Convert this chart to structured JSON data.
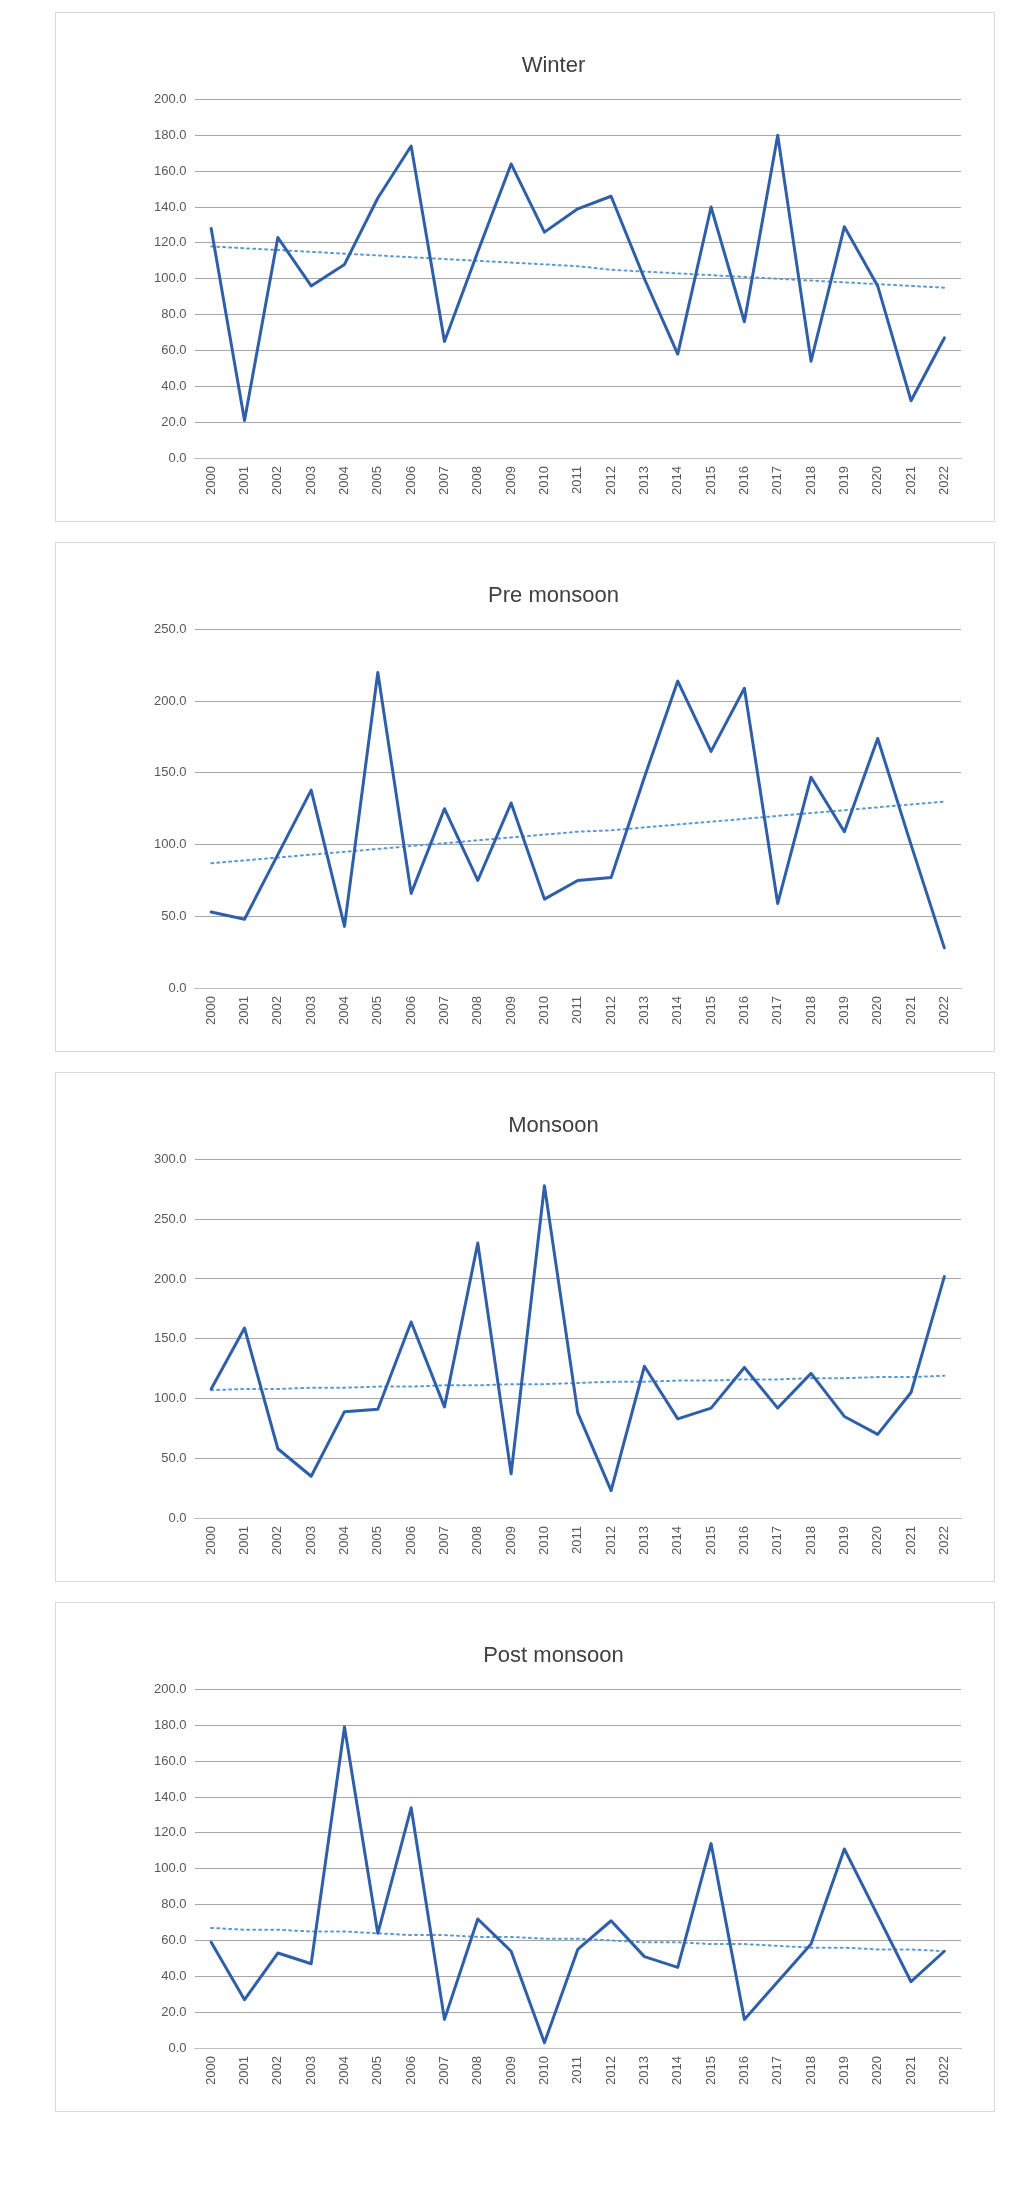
{
  "chart_data": [
    {
      "type": "line",
      "title": "Winter",
      "categories": [
        "2000",
        "2001",
        "2002",
        "2003",
        "2004",
        "2005",
        "2006",
        "2007",
        "2008",
        "2009",
        "2010",
        "2011",
        "2012",
        "2013",
        "2014",
        "2015",
        "2016",
        "2017",
        "2018",
        "2019",
        "2020",
        "2021",
        "2022"
      ],
      "series": [
        {
          "color": "#2e5fa8",
          "line_style": "solid",
          "values": [
            128,
            21,
            123,
            96,
            108,
            145,
            174,
            65,
            115,
            164,
            126,
            139,
            146,
            100,
            58,
            140,
            76,
            180,
            54,
            129,
            96,
            32,
            67
          ]
        },
        {
          "type": "line",
          "color": "#5b9bd5",
          "line_style": "dotted",
          "values": [
            118,
            117,
            116,
            115,
            114,
            113,
            112,
            111,
            110,
            109,
            108,
            107,
            105,
            104,
            103,
            102,
            101,
            100,
            99,
            98,
            97,
            96,
            95
          ]
        }
      ],
      "ylim": [
        0,
        200
      ],
      "yticks": [
        {
          "value": 0,
          "label": "0.0"
        },
        {
          "value": 20,
          "label": "20.0"
        },
        {
          "value": 40,
          "label": "40.0"
        },
        {
          "value": 60,
          "label": "60.0"
        },
        {
          "value": 80,
          "label": "80.0"
        },
        {
          "value": 100,
          "label": "100.0"
        },
        {
          "value": 120,
          "label": "120.0"
        },
        {
          "value": 140,
          "label": "140.0"
        },
        {
          "value": 160,
          "label": "160.0"
        },
        {
          "value": 180,
          "label": "180.0"
        },
        {
          "value": 200,
          "label": "200.0"
        }
      ],
      "grid": "y",
      "legend": false,
      "marker": "none"
    },
    {
      "type": "line",
      "title": "Pre monsoon",
      "categories": [
        "2000",
        "2001",
        "2002",
        "2003",
        "2004",
        "2005",
        "2006",
        "2007",
        "2008",
        "2009",
        "2010",
        "2011",
        "2012",
        "2013",
        "2014",
        "2015",
        "2016",
        "2017",
        "2018",
        "2019",
        "2020",
        "2021",
        "2022"
      ],
      "series": [
        {
          "color": "#2e5fa8",
          "line_style": "solid",
          "values": [
            53,
            48,
            93,
            138,
            43,
            220,
            66,
            125,
            75,
            129,
            62,
            75,
            77,
            147,
            214,
            165,
            209,
            59,
            147,
            109,
            174,
            100,
            28
          ]
        },
        {
          "type": "line",
          "color": "#5b9bd5",
          "line_style": "dotted",
          "values": [
            87,
            89,
            91,
            93,
            95,
            97,
            99,
            101,
            103,
            105,
            107,
            109,
            110,
            112,
            114,
            116,
            118,
            120,
            122,
            124,
            126,
            128,
            130
          ]
        }
      ],
      "ylim": [
        0,
        250
      ],
      "yticks": [
        {
          "value": 0,
          "label": "0.0"
        },
        {
          "value": 50,
          "label": "50.0"
        },
        {
          "value": 100,
          "label": "100.0"
        },
        {
          "value": 150,
          "label": "150.0"
        },
        {
          "value": 200,
          "label": "200.0"
        },
        {
          "value": 250,
          "label": "250.0"
        }
      ],
      "grid": "y",
      "legend": false,
      "marker": "none"
    },
    {
      "type": "line",
      "title": "Monsoon",
      "categories": [
        "2000",
        "2001",
        "2002",
        "2003",
        "2004",
        "2005",
        "2006",
        "2007",
        "2008",
        "2009",
        "2010",
        "2011",
        "2012",
        "2013",
        "2014",
        "2015",
        "2016",
        "2017",
        "2018",
        "2019",
        "2020",
        "2021",
        "2022"
      ],
      "series": [
        {
          "color": "#2e5fa8",
          "line_style": "solid",
          "values": [
            108,
            159,
            58,
            35,
            89,
            91,
            164,
            93,
            230,
            37,
            278,
            88,
            23,
            127,
            83,
            92,
            126,
            92,
            121,
            85,
            70,
            105,
            202
          ]
        },
        {
          "type": "line",
          "color": "#5b9bd5",
          "line_style": "dotted",
          "values": [
            107,
            108,
            108,
            109,
            109,
            110,
            110,
            111,
            111,
            112,
            112,
            113,
            114,
            114,
            115,
            115,
            116,
            116,
            117,
            117,
            118,
            118,
            119
          ]
        }
      ],
      "ylim": [
        0,
        300
      ],
      "yticks": [
        {
          "value": 0,
          "label": "0.0"
        },
        {
          "value": 50,
          "label": "50.0"
        },
        {
          "value": 100,
          "label": "100.0"
        },
        {
          "value": 150,
          "label": "150.0"
        },
        {
          "value": 200,
          "label": "200.0"
        },
        {
          "value": 250,
          "label": "250.0"
        },
        {
          "value": 300,
          "label": "300.0"
        }
      ],
      "grid": "y",
      "legend": false,
      "marker": "none"
    },
    {
      "type": "line",
      "title": "Post monsoon",
      "categories": [
        "2000",
        "2001",
        "2002",
        "2003",
        "2004",
        "2005",
        "2006",
        "2007",
        "2008",
        "2009",
        "2010",
        "2011",
        "2012",
        "2013",
        "2014",
        "2015",
        "2016",
        "2017",
        "2018",
        "2019",
        "2020",
        "2021",
        "2022"
      ],
      "series": [
        {
          "color": "#2e5fa8",
          "line_style": "solid",
          "values": [
            59,
            27,
            53,
            47,
            179,
            64,
            134,
            16,
            72,
            54,
            3,
            55,
            71,
            51,
            45,
            114,
            16,
            37,
            58,
            111,
            74,
            37,
            54
          ]
        },
        {
          "type": "line",
          "color": "#5b9bd5",
          "line_style": "dotted",
          "values": [
            67,
            66,
            66,
            65,
            65,
            64,
            63,
            63,
            62,
            62,
            61,
            61,
            60,
            59,
            59,
            58,
            58,
            57,
            56,
            56,
            55,
            55,
            54
          ]
        }
      ],
      "ylim": [
        0,
        200
      ],
      "yticks": [
        {
          "value": 0,
          "label": "0.0"
        },
        {
          "value": 20,
          "label": "20.0"
        },
        {
          "value": 40,
          "label": "40.0"
        },
        {
          "value": 60,
          "label": "60.0"
        },
        {
          "value": 80,
          "label": "80.0"
        },
        {
          "value": 100,
          "label": "100.0"
        },
        {
          "value": 120,
          "label": "120.0"
        },
        {
          "value": 140,
          "label": "140.0"
        },
        {
          "value": 160,
          "label": "160.0"
        },
        {
          "value": 180,
          "label": "180.0"
        },
        {
          "value": 200,
          "label": "200.0"
        }
      ],
      "grid": "y",
      "legend": false,
      "marker": "none"
    }
  ]
}
